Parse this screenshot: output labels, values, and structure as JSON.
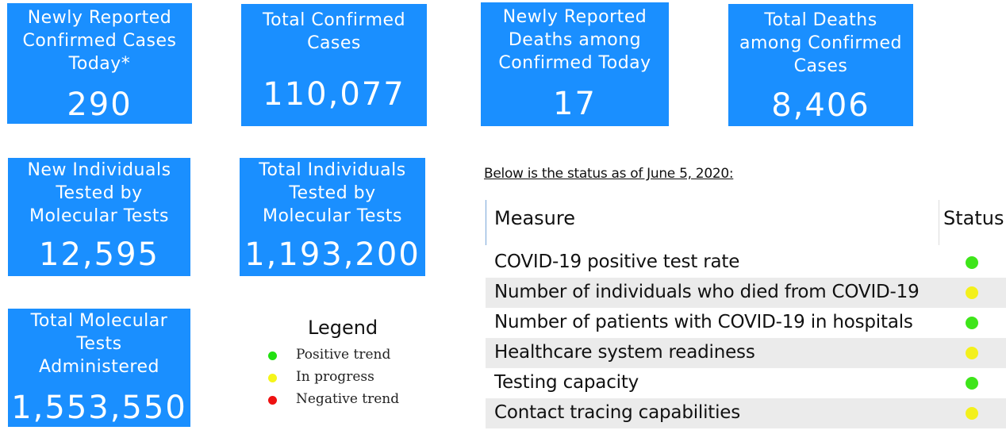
{
  "cards": [
    {
      "title": "Newly Reported Confirmed Cases Today*",
      "value": "290"
    },
    {
      "title": "Total Confirmed Cases",
      "value": "110,077"
    },
    {
      "title": "Newly Reported Deaths among Confirmed Today",
      "value": "17"
    },
    {
      "title": "Total Deaths among Confirmed Cases",
      "value": "8,406"
    },
    {
      "title": "New Individuals Tested by Molecular Tests",
      "value": "12,595"
    },
    {
      "title": "Total Individuals Tested by Molecular Tests",
      "value": "1,193,200"
    },
    {
      "title": "Total Molecular Tests Administered",
      "value": "1,553,550"
    }
  ],
  "card_titles_wrapped": [
    [
      "Newly Reported",
      "Confirmed Cases",
      "Today*"
    ],
    [
      "Total Confirmed",
      "Cases"
    ],
    [
      "Newly Reported",
      "Deaths among",
      "Confirmed Today"
    ],
    [
      "Total Deaths",
      "among Confirmed",
      "Cases"
    ],
    [
      "New Individuals",
      "Tested by",
      "Molecular Tests"
    ],
    [
      "Total Individuals",
      "Tested by",
      "Molecular Tests"
    ],
    [
      "Total Molecular",
      "Tests",
      "Administered"
    ]
  ],
  "legend": {
    "title": "Legend",
    "items": [
      {
        "label": "Positive trend",
        "color": "#22e011"
      },
      {
        "label": "In progress",
        "color": "#f5f51a"
      },
      {
        "label": "Negative trend",
        "color": "#ee1111"
      }
    ]
  },
  "status_note": "Below is the status as of June 5, 2020:",
  "table": {
    "headers": {
      "measure": "Measure",
      "status": "Status"
    },
    "rows": [
      {
        "measure": "COVID-19 positive test rate",
        "status_color": "#3ee51a"
      },
      {
        "measure": "Number of individuals who died from COVID-19",
        "status_color": "#f3f01c"
      },
      {
        "measure": "Number of patients with COVID-19 in hospitals",
        "status_color": "#3ee51a"
      },
      {
        "measure": "Healthcare system readiness",
        "status_color": "#f3f01c"
      },
      {
        "measure": "Testing capacity",
        "status_color": "#3ee51a"
      },
      {
        "measure": "Contact tracing capabilities",
        "status_color": "#f3f01c"
      }
    ]
  },
  "colors": {
    "card_background": "#1a8fff",
    "row_alt_background": "#ebebeb"
  }
}
